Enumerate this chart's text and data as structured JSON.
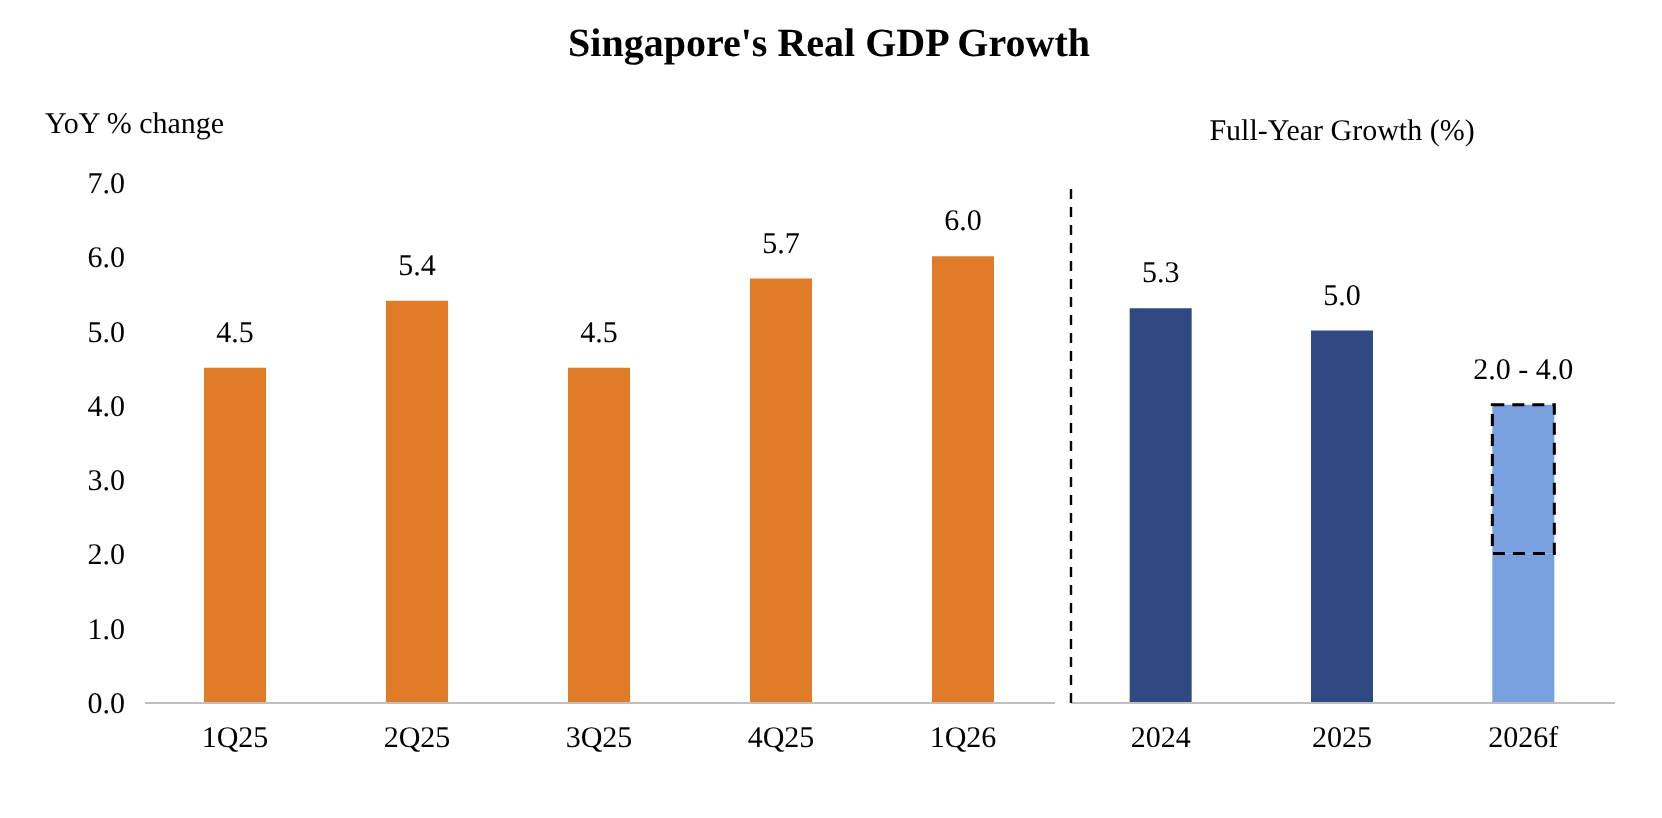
{
  "chart_data": [
    {
      "type": "bar",
      "title": "Singapore's Real GDP Growth",
      "ylabel": "YoY % change",
      "categories": [
        "1Q25",
        "2Q25",
        "3Q25",
        "4Q25",
        "1Q26"
      ],
      "series": [
        {
          "colors": [
            "#e07b28",
            "#e07b28",
            "#e07b28",
            "#e07b28",
            "#e07b28"
          ],
          "values": [
            4.5,
            5.4,
            4.5,
            5.7,
            6.0
          ],
          "value_labels": [
            "4.5",
            "5.4",
            "4.5",
            "5.7",
            "6.0"
          ]
        }
      ],
      "ylim": [
        0,
        7
      ],
      "yticks": [
        {
          "value": 0,
          "label": "0.0"
        },
        {
          "value": 1,
          "label": "1.0"
        },
        {
          "value": 2,
          "label": "2.0"
        },
        {
          "value": 3,
          "label": "3.0"
        },
        {
          "value": 4,
          "label": "4.0"
        },
        {
          "value": 5,
          "label": "5.0"
        },
        {
          "value": 6,
          "label": "6.0"
        },
        {
          "value": 7,
          "label": "7.0"
        }
      ]
    },
    {
      "type": "bar",
      "title": "Full-Year Growth (%)",
      "stacked": true,
      "tick_labels": "x",
      "categories": [
        "2024",
        "2025",
        "2026f"
      ],
      "series": [
        {
          "colors": [
            "#2f4a82",
            "#2f4a82",
            "#77a0dc"
          ],
          "values": [
            5.3,
            5.0,
            2.0
          ],
          "value_labels": [
            "5.3",
            "5.0",
            null
          ]
        },
        {
          "colors": [
            null,
            null,
            "#77a0dc"
          ],
          "values": [
            null,
            null,
            2.0
          ],
          "value_labels": [
            null,
            null,
            "2.0 - 4.0"
          ],
          "line_style": "dashed"
        }
      ],
      "ylim": [
        0,
        7
      ]
    }
  ]
}
